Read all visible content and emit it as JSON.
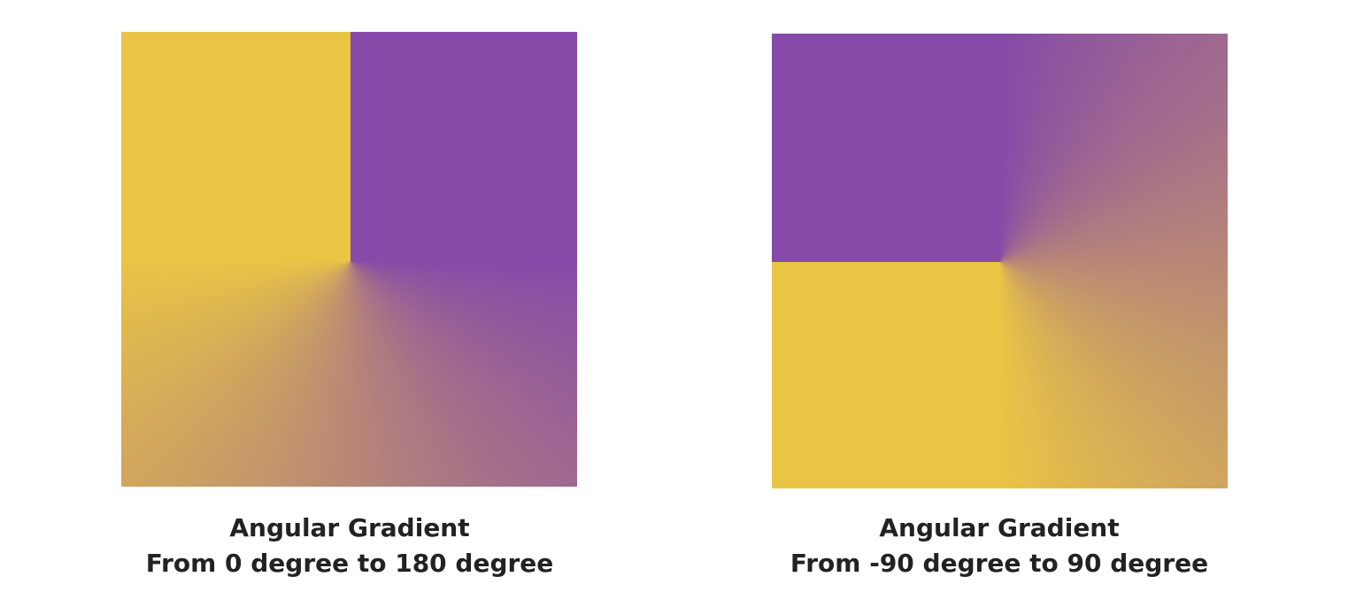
{
  "panels": [
    {
      "title": "Angular Gradient",
      "subtitle": "From 0 degree to 180 degree"
    },
    {
      "title": "Angular Gradient",
      "subtitle": "From -90 degree to 90 degree"
    }
  ]
}
